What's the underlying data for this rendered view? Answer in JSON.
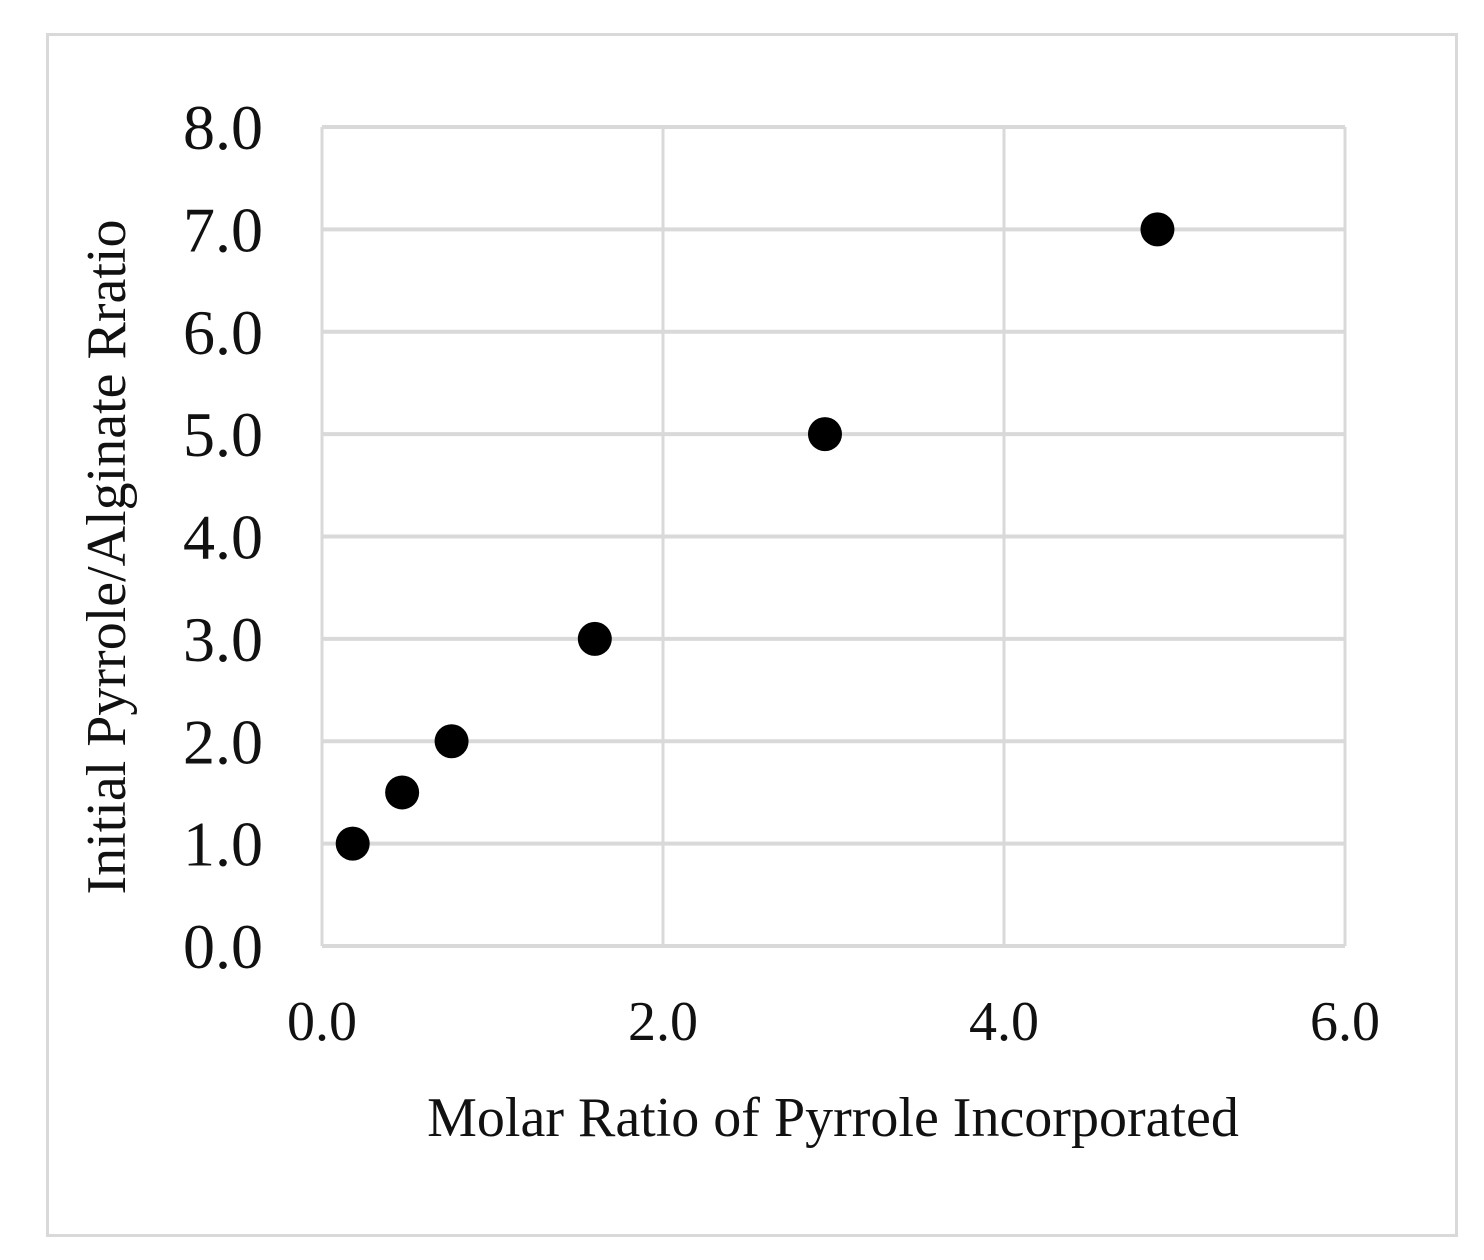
{
  "chart_data": {
    "type": "scatter",
    "title": "",
    "xlabel": "Molar Ratio of Pyrrole Incorporated",
    "ylabel": "Initial Pyrrole/Alginate Rratio",
    "xlim": [
      0.0,
      6.0
    ],
    "ylim": [
      0.0,
      8.0
    ],
    "x_ticks": [
      "0.0",
      "2.0",
      "4.0",
      "6.0"
    ],
    "y_ticks": [
      "0.0",
      "1.0",
      "2.0",
      "3.0",
      "4.0",
      "5.0",
      "6.0",
      "7.0",
      "8.0"
    ],
    "grid": true,
    "legend": "none",
    "colors": {
      "point": "#000000",
      "grid": "#d9d9d9",
      "frame": "#d9d9d9"
    },
    "points": [
      {
        "x": 0.18,
        "y": 1.0
      },
      {
        "x": 0.47,
        "y": 1.5
      },
      {
        "x": 0.76,
        "y": 2.0
      },
      {
        "x": 1.6,
        "y": 3.0
      },
      {
        "x": 2.95,
        "y": 5.0
      },
      {
        "x": 4.9,
        "y": 7.0
      }
    ]
  }
}
